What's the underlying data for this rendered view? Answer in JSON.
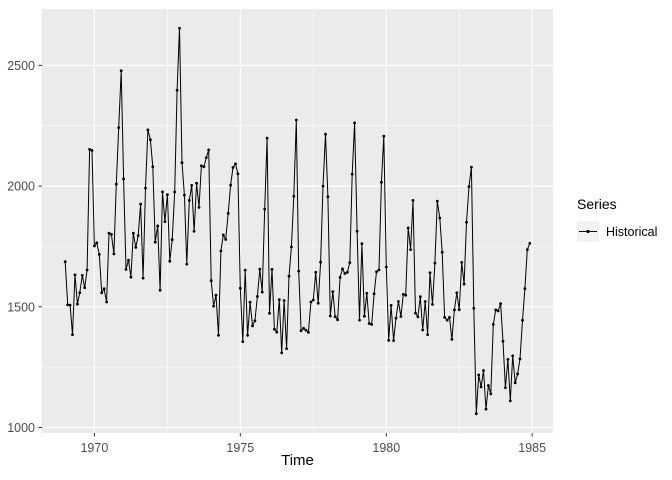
{
  "figure": {
    "background": "#FFFFFF",
    "panel_background": "#EBEBEB",
    "gridline_color": "#FFFFFF",
    "series_color": "#000000",
    "tick_mark_color": "#333333",
    "tick_label_color": "#4D4D4D",
    "axis_title_color": "#000000"
  },
  "axes": {
    "x_title": "Time",
    "x_ticks": [
      1970,
      1975,
      1980,
      1985
    ],
    "x_minor_gridlines": [
      1972.5,
      1977.5,
      1982.5
    ],
    "y_ticks": [
      1000,
      1500,
      2000,
      2500
    ],
    "y_minor_gridlines": [
      1250,
      1750,
      2250
    ]
  },
  "legend": {
    "title": "Series",
    "items": [
      {
        "label": "Historical",
        "key_fill": "#F2F2F2",
        "key_marker": "point-line"
      }
    ]
  },
  "chart_data": {
    "type": "line",
    "title": "",
    "xlabel": "Time",
    "ylabel": "",
    "legend_position": "right",
    "grid": true,
    "series": [
      {
        "name": "Historical",
        "color": "#000000",
        "marker": "point",
        "x_start": 1969,
        "x_step": 0.0833333333,
        "values": [
          1687,
          1508,
          1507,
          1385,
          1632,
          1511,
          1559,
          1630,
          1579,
          1653,
          2152,
          2148,
          1752,
          1765,
          1717,
          1558,
          1575,
          1520,
          1805,
          1800,
          1719,
          2008,
          2242,
          2478,
          2030,
          1655,
          1693,
          1623,
          1805,
          1746,
          1795,
          1926,
          1619,
          1992,
          2233,
          2192,
          2080,
          1768,
          1835,
          1569,
          1976,
          1853,
          1965,
          1689,
          1778,
          1976,
          2397,
          2654,
          2097,
          1963,
          1677,
          1941,
          2003,
          1813,
          2012,
          1912,
          2084,
          2080,
          2118,
          2150,
          1608,
          1503,
          1548,
          1382,
          1731,
          1798,
          1779,
          1887,
          2004,
          2077,
          2092,
          2051,
          1577,
          1356,
          1652,
          1382,
          1519,
          1421,
          1442,
          1543,
          1656,
          1561,
          1905,
          2199,
          1473,
          1655,
          1407,
          1395,
          1530,
          1309,
          1526,
          1327,
          1627,
          1748,
          1958,
          2274,
          1648,
          1401,
          1411,
          1403,
          1394,
          1520,
          1528,
          1643,
          1515,
          1685,
          2000,
          2215,
          1956,
          1462,
          1563,
          1459,
          1446,
          1622,
          1657,
          1638,
          1643,
          1683,
          2050,
          2262,
          1813,
          1445,
          1762,
          1461,
          1556,
          1431,
          1427,
          1554,
          1645,
          1653,
          2016,
          2207,
          1665,
          1361,
          1506,
          1360,
          1453,
          1522,
          1460,
          1552,
          1548,
          1827,
          1737,
          1941,
          1474,
          1458,
          1542,
          1404,
          1522,
          1385,
          1641,
          1510,
          1681,
          1938,
          1868,
          1726,
          1456,
          1445,
          1456,
          1365,
          1487,
          1558,
          1488,
          1684,
          1594,
          1850,
          1998,
          2079,
          1494,
          1057,
          1218,
          1168,
          1236,
          1076,
          1174,
          1139,
          1427,
          1487,
          1483,
          1513,
          1357,
          1165,
          1282,
          1110,
          1297,
          1185,
          1222,
          1284,
          1444,
          1575,
          1737,
          1763
        ]
      }
    ],
    "xlim": [
      1968.204,
      1985.713
    ],
    "ylim": [
      977.15,
      2733.85
    ]
  }
}
